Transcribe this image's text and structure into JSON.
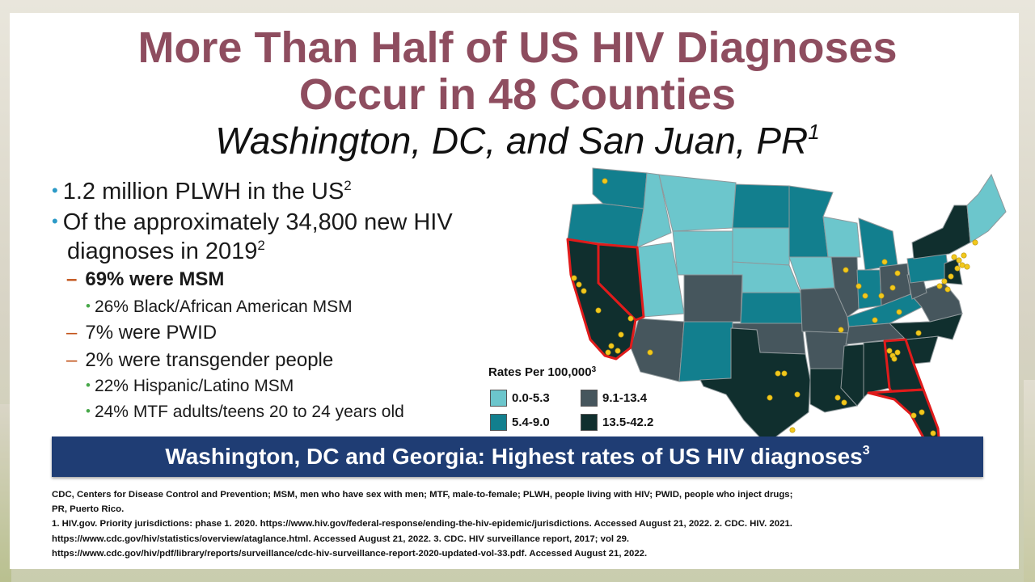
{
  "header": {
    "title_line1": "More Than Half of US HIV Diagnoses",
    "title_line2": "Occur in 48 Counties",
    "subtitle": "Washington, DC, and San Juan, PR",
    "subtitle_sup": "1"
  },
  "bullets": {
    "b1": {
      "text": "1.2 million PLWH in the US",
      "sup": "2"
    },
    "b2": {
      "line1": "Of the approximately  34,800 new HIV",
      "line2": "diagnoses  in 2019",
      "sup": "2"
    },
    "msm": "69% were MSM",
    "msm_black": "26% Black/African American MSM",
    "pwid": "7% were PWID",
    "transgender": "2% were transgender people",
    "hispanic": "22% Hispanic/Latino MSM",
    "mtf": "24% MTF adults/teens 20 to 24 years old"
  },
  "legend": {
    "title": "Rates Per 100,000",
    "title_sup": "3",
    "items": [
      {
        "label": "0.0-5.3",
        "color": "#6cc6cc"
      },
      {
        "label": "9.1-13.4",
        "color": "#46565d"
      },
      {
        "label": "5.4-9.0",
        "color": "#127f8e"
      },
      {
        "label": "13.5-42.2",
        "color": "#102f2e"
      }
    ]
  },
  "map": {
    "highlight_color": "#e01b1b",
    "dot_color": "#f2c81c",
    "border_color": "#9aa0a3"
  },
  "banner": {
    "text": "Washington, DC and Georgia: Highest rates of US HIV diagnoses",
    "sup": "3"
  },
  "footer": {
    "line1": "CDC, Centers for Disease Control and Prevention; MSM, men who have sex with men; MTF, male-to-female; PLWH, people living with HIV; PWID, people who inject drugs;",
    "line2": "PR, Puerto Rico.",
    "line3": "1. HIV.gov. Priority jurisdictions: phase 1. 2020. https://www.hiv.gov/federal-response/ending-the-hiv-epidemic/jurisdictions.  Accessed August 21, 2022. 2. CDC. HIV. 2021.",
    "line4": "https://www.cdc.gov/hiv/statistics/overview/ataglance.html.  Accessed August 21, 2022. 3. CDC. HIV surveillance report, 2017; vol 29.",
    "line5": "https://www.cdc.gov/hiv/pdf/library/reports/surveillance/cdc-hiv-surveillance-report-2020-updated-vol-33.pdf.  Accessed August 21, 2022."
  }
}
